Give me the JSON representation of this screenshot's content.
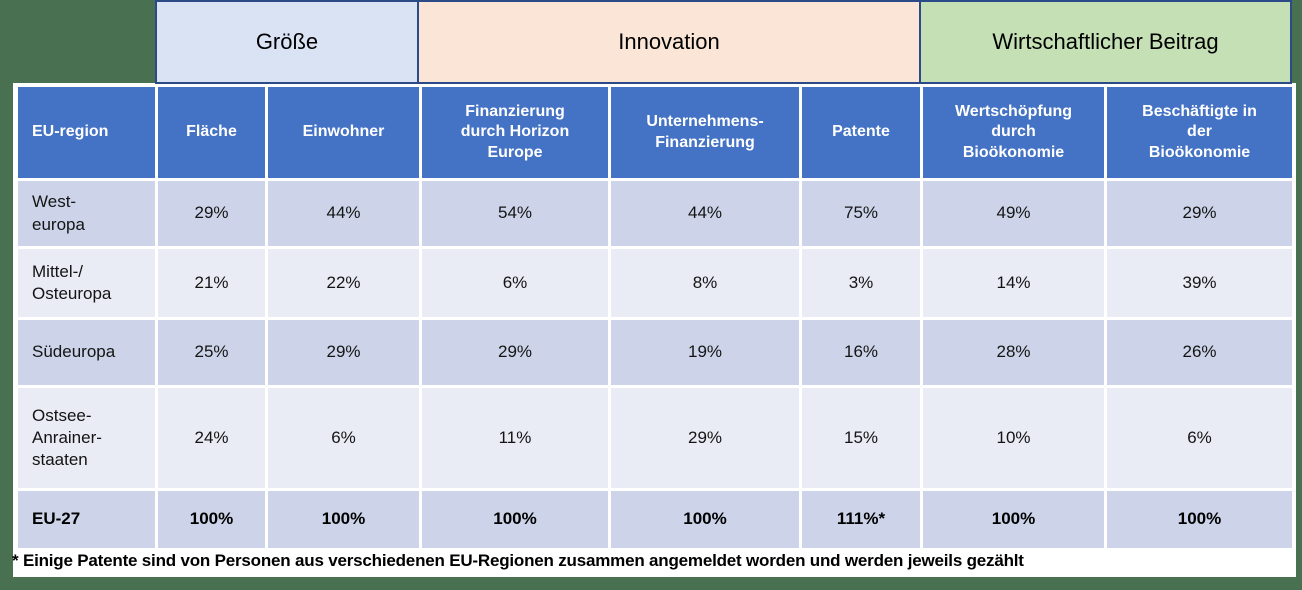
{
  "colors": {
    "background_green": "#4a7052",
    "card_white": "#ffffff",
    "header_blue": "#4472c4",
    "row_dark_lavender": "#cdd4e9",
    "row_light_lavender": "#e9ebf5",
    "groesse_fill": "#dae3f3",
    "innovation_fill": "#fbe5d6",
    "beitrag_fill": "#c5e0b4",
    "category_border_navy": "#2b4a88"
  },
  "chart_data": {
    "type": "table",
    "title": "",
    "column_groups": [
      {
        "label": "Größe",
        "columns": [
          "Fläche",
          "Einwohner"
        ]
      },
      {
        "label": "Innovation",
        "columns": [
          "Finanzierung durch Horizon Europe",
          "Unternehmens-Finanzierung",
          "Patente"
        ]
      },
      {
        "label": "Wirtschaftlicher Beitrag",
        "columns": [
          "Wertschöpfung durch Bioökonomie",
          "Beschäftigte in der Bioökonomie"
        ]
      }
    ],
    "columns": [
      "EU-region",
      "Fläche",
      "Einwohner",
      "Finanzierung\ndurch Horizon\nEurope",
      "Unternehmens-\nFinanzierung",
      "Patente",
      "Wertschöpfung\ndurch\nBioökonomie",
      "Beschäftigte in\nder\nBioökonomie"
    ],
    "rows": [
      {
        "label": "West-\neuropa",
        "values": [
          "29%",
          "44%",
          "54%",
          "44%",
          "75%",
          "49%",
          "29%"
        ]
      },
      {
        "label": "Mittel-/\nOsteuropa",
        "values": [
          "21%",
          "22%",
          "6%",
          "8%",
          "3%",
          "14%",
          "39%"
        ]
      },
      {
        "label": "Südeuropa",
        "values": [
          "25%",
          "29%",
          "29%",
          "19%",
          "16%",
          "28%",
          "26%"
        ]
      },
      {
        "label": "Ostsee-\nAnrainer-\nstaaten",
        "values": [
          "24%",
          "6%",
          "11%",
          "29%",
          "15%",
          "10%",
          "6%"
        ]
      },
      {
        "label": "EU-27",
        "values": [
          "100%",
          "100%",
          "100%",
          "100%",
          "111%*",
          "100%",
          "100%"
        ]
      }
    ]
  },
  "footnote": "* Einige Patente sind von Personen aus verschiedenen EU-Regionen zusammen angemeldet worden und werden jeweils gezählt"
}
